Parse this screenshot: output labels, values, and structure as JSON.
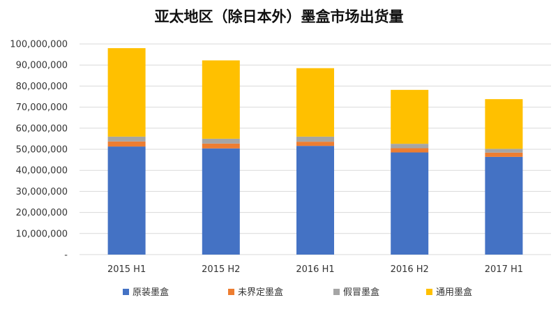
{
  "chart_data": {
    "type": "bar",
    "stacked": true,
    "title": "亚太地区（除日本外）墨盒市场出货量",
    "categories": [
      "2015 H1",
      "2015 H2",
      "2016 H1",
      "2016 H2",
      "2017 H1"
    ],
    "series": [
      {
        "name": "原装墨盒",
        "color": "#4472C4",
        "values": [
          51300000,
          50400000,
          51600000,
          48500000,
          46400000
        ]
      },
      {
        "name": "未界定墨盒",
        "color": "#ED7D31",
        "values": [
          2400000,
          2300000,
          2000000,
          2000000,
          2000000
        ]
      },
      {
        "name": "假冒墨盒",
        "color": "#A5A5A5",
        "values": [
          2300000,
          2300000,
          2400000,
          2100000,
          1800000
        ]
      },
      {
        "name": "通用墨盒",
        "color": "#FFC000",
        "values": [
          42000000,
          37200000,
          32500000,
          25600000,
          23600000
        ]
      }
    ],
    "ylim": [
      0,
      100000000
    ],
    "yticks": [
      0,
      10000000,
      20000000,
      30000000,
      40000000,
      50000000,
      60000000,
      70000000,
      80000000,
      90000000,
      100000000
    ],
    "ytick_labels": [
      "-",
      "10,000,000",
      "20,000,000",
      "30,000,000",
      "40,000,000",
      "50,000,000",
      "60,000,000",
      "70,000,000",
      "80,000,000",
      "90,000,000",
      "100,000,000"
    ],
    "grid": true,
    "legend_position": "bottom"
  }
}
